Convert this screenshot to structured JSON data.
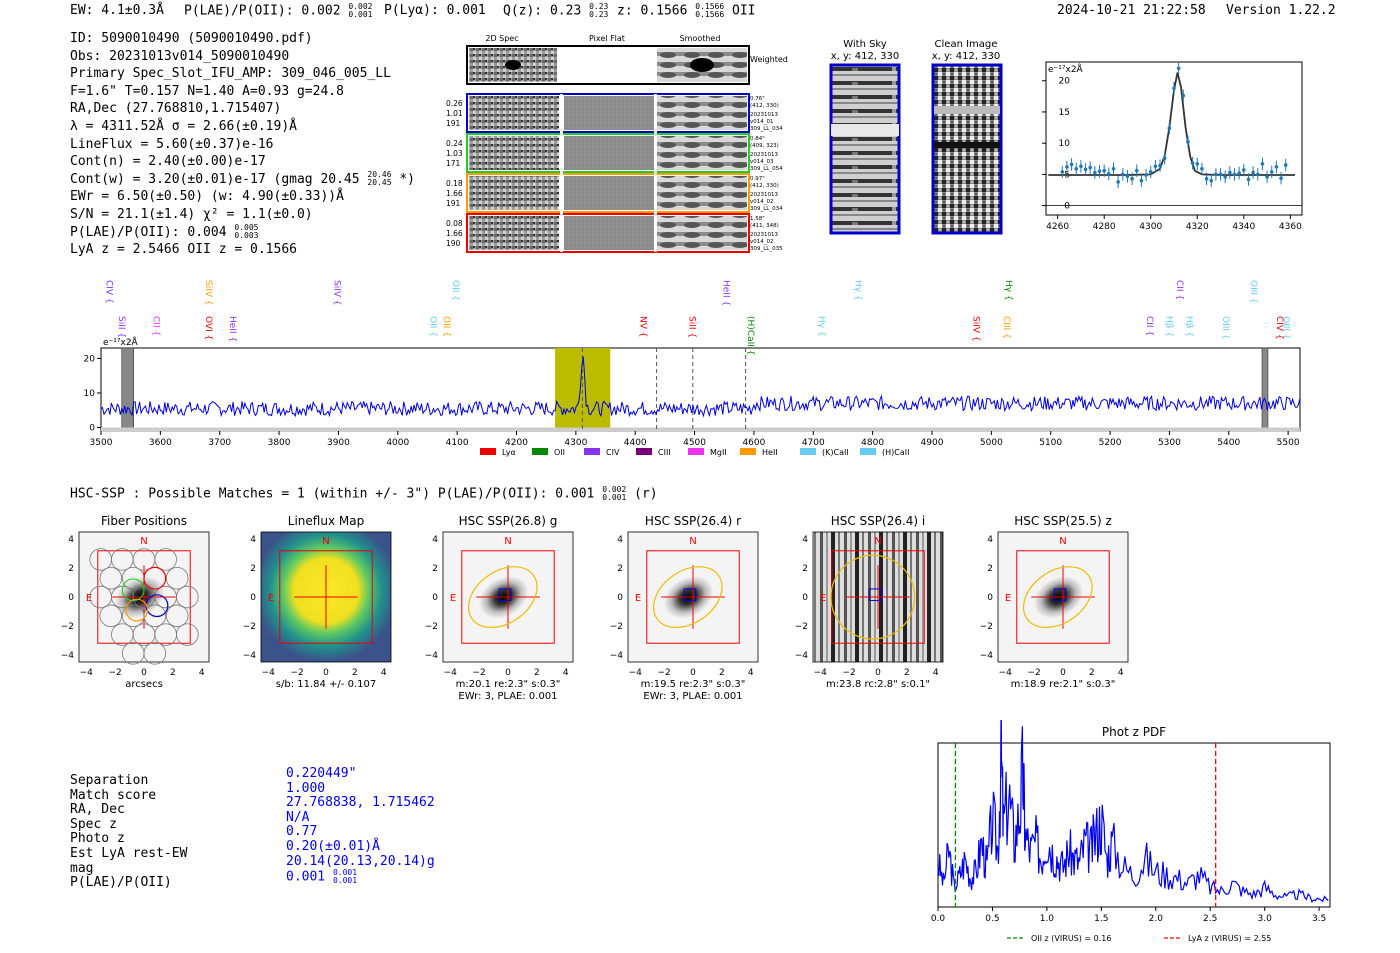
{
  "header": {
    "ew": "EW: 4.1±0.3Å",
    "plae": "P(LAE)/P(OII): 0.002",
    "plae_hi": "0.002",
    "plae_lo": "0.001",
    "plya": "P(Lyα): 0.001",
    "qz": "Q(z): 0.23",
    "qz_hi": "0.23",
    "qz_lo": "0.23",
    "z": "z: 0.1566",
    "z_hi": "0.1566",
    "z_lo": "0.1566",
    "line": "OII",
    "timestamp": "2024-10-21 21:22:58",
    "version": "Version 1.22.2"
  },
  "info": {
    "id": "ID: 5090010490 (5090010490.pdf)",
    "obs": "Obs: 20231013v014_5090010490",
    "primary": "Primary Spec_Slot_IFU_AMP: 309_046_005_LL",
    "params": "F=1.6\"  T=0.157  N=1.40  A=0.93  g=24.8",
    "radec": "RA,Dec (27.768810,1.715407)",
    "lambda": "λ = 4311.52Å  σ = 2.66(±0.19)Å",
    "lineflux": "LineFlux = 5.60(±0.37)e-16",
    "contn": "Cont(n) = 2.40(±0.00)e-17",
    "contw": "Cont(w) = 3.20(±0.01)e-17 (gmag 20.45",
    "contw_hi": "20.46",
    "contw_lo": "20.45",
    "contw_tail": "*)",
    "ewr": "EWr = 6.50(±0.50) (w: 4.90(±0.33))Å",
    "sn": "S/N = 21.1(±1.4)  χ² = 1.1(±0.0)",
    "plae": "P(LAE)/P(OII): 0.004",
    "plae_hi": "0.005",
    "plae_lo": "0.003",
    "lyaz": "LyA z = 2.5466  OII z = 0.1566"
  },
  "cutouts": {
    "col_labels": [
      "2D Spec",
      "Pixel Flat",
      "Smoothed"
    ],
    "weighted": "Weighted Sum",
    "rows": [
      {
        "left": [
          "0.26",
          "1.01",
          "191"
        ],
        "right": [
          "0.76\"",
          "(412, 330)",
          "20231013",
          "v014_01",
          "309_LL_034"
        ],
        "color": "#0000cc"
      },
      {
        "left": [
          "0.24",
          "1.03",
          "171"
        ],
        "right": [
          "0.84\"",
          "(409, 323)",
          "20231013",
          "v014_03",
          "309_LL_054"
        ],
        "color": "#22cc22"
      },
      {
        "left": [
          "0.18",
          "1.66",
          "191"
        ],
        "right": [
          "0.97\"",
          "(412, 330)",
          "20231013",
          "v014_02",
          "309_LL_034"
        ],
        "color": "#ff9900"
      },
      {
        "left": [
          "0.08",
          "1.66",
          "190"
        ],
        "right": [
          "1.58\"",
          "(411, 348)",
          "20231013",
          "v014_02",
          "309_LL_035"
        ],
        "color": "#ee0000"
      }
    ]
  },
  "sky": {
    "with_sky_title": "With Sky",
    "clean_title": "Clean Image",
    "coord": "x, y: 412, 330"
  },
  "colors": {
    "blue": "#0000ee",
    "olive": "#bbbb00",
    "red": "#ee0000",
    "gray": "#888888"
  },
  "chart_data": [
    {
      "type": "line",
      "title": "",
      "ylabel_unit": "e⁻¹⁷x2Å",
      "xlim": [
        4255,
        4365
      ],
      "ylim": [
        -1.5,
        23
      ],
      "xticks": [
        4260,
        4280,
        4300,
        4320,
        4340,
        4360
      ],
      "yticks": [
        0,
        5,
        10,
        15,
        20
      ],
      "series": [
        {
          "name": "fit",
          "x": [
            4256,
            4290,
            4300,
            4304,
            4306,
            4308,
            4310,
            4311.5,
            4313,
            4315,
            4317,
            4319,
            4322,
            4330,
            4362
          ],
          "y": [
            4.9,
            4.9,
            5.0,
            5.9,
            8.0,
            12.5,
            18.5,
            21.3,
            19.0,
            12.5,
            7.8,
            5.6,
            5.0,
            4.9,
            4.9
          ]
        },
        {
          "name": "data",
          "x": [
            4262,
            4264,
            4266,
            4268,
            4270,
            4272,
            4274,
            4276,
            4278,
            4280,
            4282,
            4284,
            4286,
            4288,
            4290,
            4292,
            4294,
            4296,
            4298,
            4300,
            4302,
            4304,
            4306,
            4308,
            4310,
            4312,
            4314,
            4316,
            4318,
            4320,
            4322,
            4324,
            4326,
            4328,
            4330,
            4332,
            4334,
            4336,
            4338,
            4340,
            4342,
            4344,
            4346,
            4348,
            4350,
            4352,
            4354,
            4356,
            4358
          ],
          "y": [
            5.4,
            6.2,
            6.6,
            5.9,
            6.3,
            5.8,
            6.1,
            5.3,
            5.5,
            5.6,
            5.1,
            5.9,
            3.8,
            5.0,
            4.7,
            4.3,
            5.6,
            4.0,
            4.9,
            5.4,
            6.3,
            6.4,
            7.6,
            12.4,
            18.8,
            22.0,
            17.6,
            10.2,
            6.8,
            6.7,
            5.9,
            4.3,
            4.0,
            5.0,
            5.0,
            4.6,
            5.3,
            5.0,
            5.2,
            5.7,
            4.2,
            5.3,
            5.0,
            6.7,
            4.6,
            5.4,
            6.2,
            4.4,
            6.5
          ]
        }
      ]
    },
    {
      "type": "line",
      "title": "",
      "ylabel_unit": "e⁻¹⁷x2Å",
      "xlim": [
        3500,
        5520
      ],
      "ylim": [
        -1,
        23
      ],
      "xticks": [
        3500,
        3600,
        3700,
        3800,
        3900,
        4000,
        4100,
        4200,
        4300,
        4400,
        4500,
        4600,
        4700,
        4800,
        4900,
        5000,
        5100,
        5200,
        5300,
        5400,
        5500
      ],
      "yticks": [
        0,
        10,
        20
      ],
      "highlight_range": [
        4265,
        4358
      ],
      "peak": {
        "x": 4311.5,
        "y": 21.3
      },
      "continuum_levels": [
        {
          "from": 3500,
          "to": 4600,
          "level": 5.5
        },
        {
          "from": 4600,
          "to": 5520,
          "level": 7.0
        }
      ],
      "dashed_lines": [
        4311,
        4436,
        4497,
        4586
      ],
      "masked_bands": [
        [
          3535,
          3555
        ],
        [
          5456,
          5466
        ]
      ],
      "line_labels": [
        {
          "name": "CIV",
          "x": 3504,
          "color": "#8833ee"
        },
        {
          "name": "SiII",
          "x": 3525,
          "color": "#8833ee"
        },
        {
          "name": "CII",
          "x": 3583,
          "color": "#ee33ee"
        },
        {
          "name": "SiIV",
          "x": 3672,
          "color": "#ff9900"
        },
        {
          "name": "OVI",
          "x": 3672,
          "color": "#ee0000"
        },
        {
          "name": "HeII",
          "x": 3712,
          "color": "#8833ee"
        },
        {
          "name": "SiIV",
          "x": 3888,
          "color": "#8833ee"
        },
        {
          "name": "OII",
          "x": 4050,
          "color": "#66ccee"
        },
        {
          "name": "OII",
          "x": 4073,
          "color": "#ff9900"
        },
        {
          "name": "OII",
          "x": 4088,
          "color": "#66ccee"
        },
        {
          "name": "NV",
          "x": 4404,
          "color": "#ee0000"
        },
        {
          "name": "SiII",
          "x": 4486,
          "color": "#ee0000"
        },
        {
          "name": "HeII",
          "x": 4544,
          "color": "#8833ee"
        },
        {
          "name": "(H)CaII",
          "x": 4585,
          "color": "#008800"
        },
        {
          "name": "Hγ",
          "x": 4705,
          "color": "#66ccee"
        },
        {
          "name": "Hγ",
          "x": 4766,
          "color": "#66ccee"
        },
        {
          "name": "SiIV",
          "x": 4965,
          "color": "#ee0000"
        },
        {
          "name": "CIII",
          "x": 5016,
          "color": "#ff9900"
        },
        {
          "name": "Hγ",
          "x": 5020,
          "color": "#008800"
        },
        {
          "name": "CII",
          "x": 5257,
          "color": "#8833ee"
        },
        {
          "name": "Hβ",
          "x": 5290,
          "color": "#66ccee"
        },
        {
          "name": "CII",
          "x": 5308,
          "color": "#8833ee"
        },
        {
          "name": "Hβ",
          "x": 5324,
          "color": "#66ccee"
        },
        {
          "name": "OIII",
          "x": 5385,
          "color": "#66ccee"
        },
        {
          "name": "OIII",
          "x": 5432,
          "color": "#66ccee"
        },
        {
          "name": "OIII",
          "x": 5487,
          "color": "#66ccee"
        },
        {
          "name": "CIV",
          "x": 5476,
          "color": "#ee0000"
        }
      ],
      "legend": [
        {
          "name": "Lyα",
          "color": "#ee0000"
        },
        {
          "name": "OII",
          "color": "#008800"
        },
        {
          "name": "CIV",
          "color": "#8833ee"
        },
        {
          "name": "CIII",
          "color": "#770077"
        },
        {
          "name": "MgII",
          "color": "#ee33ee"
        },
        {
          "name": "HeII",
          "color": "#ff9900"
        },
        {
          "name": "(K)CaII",
          "color": "#66ccee"
        },
        {
          "name": "(H)CaII",
          "color": "#66ccee"
        }
      ]
    },
    {
      "type": "line",
      "title": "Phot z PDF",
      "xlim": [
        0,
        3.6
      ],
      "xticks": [
        0.0,
        0.5,
        1.0,
        1.5,
        2.0,
        2.5,
        3.0,
        3.5
      ],
      "vlines": [
        {
          "x": 0.16,
          "color": "#008800",
          "label": "OII z (VIRUS) = 0.16"
        },
        {
          "x": 2.55,
          "color": "#ee0000",
          "label": "LyA z (VIRUS) = 2.55"
        }
      ],
      "x": [
        0.0,
        0.05,
        0.1,
        0.15,
        0.2,
        0.25,
        0.3,
        0.35,
        0.4,
        0.45,
        0.5,
        0.55,
        0.58,
        0.6,
        0.65,
        0.7,
        0.75,
        0.78,
        0.8,
        0.85,
        0.9,
        0.95,
        1.0,
        1.05,
        1.1,
        1.15,
        1.2,
        1.25,
        1.3,
        1.35,
        1.4,
        1.45,
        1.5,
        1.55,
        1.6,
        1.7,
        1.8,
        1.9,
        2.0,
        2.1,
        2.2,
        2.3,
        2.4,
        2.5,
        2.6,
        2.7,
        2.8,
        2.9,
        3.0,
        3.1,
        3.2,
        3.3,
        3.4,
        3.5,
        3.6
      ],
      "y": [
        0.28,
        0.15,
        0.35,
        0.12,
        0.2,
        0.3,
        0.18,
        0.22,
        0.4,
        0.25,
        0.55,
        0.35,
        0.95,
        0.5,
        0.7,
        0.4,
        0.6,
        0.85,
        0.45,
        0.35,
        0.4,
        0.3,
        0.45,
        0.35,
        0.3,
        0.25,
        0.35,
        0.3,
        0.28,
        0.4,
        0.35,
        0.45,
        0.55,
        0.3,
        0.4,
        0.25,
        0.2,
        0.3,
        0.22,
        0.2,
        0.18,
        0.15,
        0.2,
        0.12,
        0.1,
        0.15,
        0.1,
        0.08,
        0.12,
        0.08,
        0.06,
        0.08,
        0.06,
        0.05,
        0.04
      ]
    }
  ],
  "hsc": {
    "summary": "HSC-SSP : Possible Matches = 1 (within +/- 3\")  P(LAE)/P(OII): 0.001",
    "summary_hi": "0.002",
    "summary_lo": "0.001",
    "summary_tail": "(r)",
    "panels": [
      {
        "title": "Fiber Positions",
        "caption1": "arcsecs",
        "caption2": "",
        "type": "fiber"
      },
      {
        "title": "Lineflux Map",
        "caption1": "s/b: 11.84 +/- 0.107",
        "caption2": "",
        "type": "lineflux"
      },
      {
        "title": "HSC SSP(26.8) g",
        "caption1": "m:20.1  re:2.3\"  s:0.3\"",
        "caption2": "EWr: 3, PLAE: 0.001",
        "type": "galaxy"
      },
      {
        "title": "HSC SSP(26.4) r",
        "caption1": "m:19.5  re:2.3\"  s:0.3\"",
        "caption2": "EWr: 3, PLAE: 0.001",
        "type": "galaxy"
      },
      {
        "title": "HSC SSP(26.4) i",
        "caption1": "m:23.8 rc:2.8\"  s:0.1\"",
        "caption2": "",
        "type": "stripes"
      },
      {
        "title": "HSC SSP(25.5) z",
        "caption1": "m:18.9  re:2.1\"  s:0.3\"",
        "caption2": "",
        "type": "galaxy"
      }
    ],
    "axis_ticks": [
      "−4",
      "−2",
      "0",
      "2",
      "4"
    ],
    "north": "N",
    "east": "E"
  },
  "match": {
    "labels": [
      "Separation",
      "Match score",
      "RA, Dec",
      "Spec z",
      "Photo z",
      "Est LyA rest-EW",
      "mag",
      "P(LAE)/P(OII)"
    ],
    "values": [
      "0.220449\"",
      "1.000",
      "27.768838, 1.715462",
      "N/A",
      "0.77",
      "0.20(±0.01)Å",
      "20.14(20.13,20.14)g",
      "0.001"
    ],
    "plae_hi": "0.001",
    "plae_lo": "0.001"
  }
}
